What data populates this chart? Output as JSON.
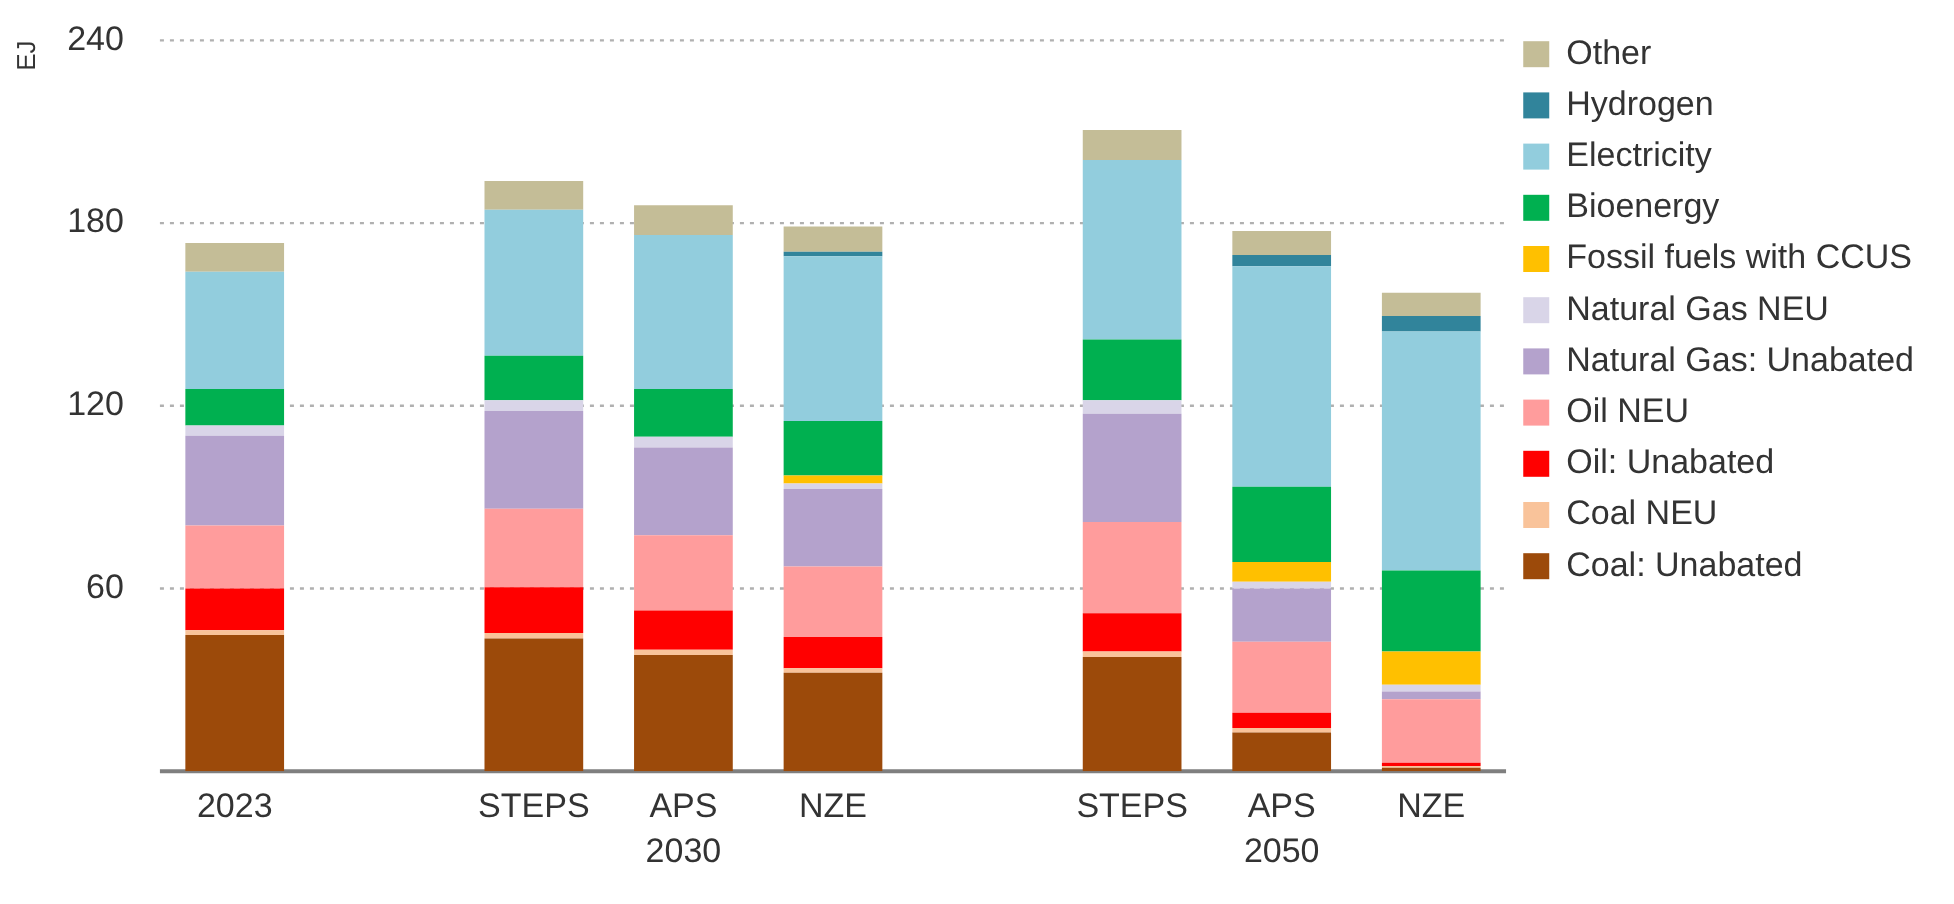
{
  "chart_data": {
    "type": "bar",
    "stacked": true,
    "ylabel": "EJ",
    "categories": [
      "2023",
      null,
      "STEPS",
      "APS",
      "NZE",
      null,
      "STEPS",
      "APS",
      "NZE"
    ],
    "ylim": [
      0,
      240
    ],
    "yticks": [
      {
        "value": 0,
        "label": null
      },
      60,
      120,
      180,
      240
    ],
    "grid": "y",
    "legend": "right",
    "annotations": [
      "2030",
      "2050"
    ],
    "series": [
      {
        "name": "Coal: Unabated",
        "color": "#9c4a0a",
        "values": [
          44.7,
          null,
          43.6,
          38.2,
          32.3,
          null,
          37.5,
          12.7,
          1.1
        ]
      },
      {
        "name": "Coal NEU",
        "color": "#f9c39a",
        "values": [
          1.6,
          null,
          1.8,
          1.7,
          1.5,
          null,
          1.8,
          1.5,
          0.6
        ]
      },
      {
        "name": "Oil: Unabated",
        "color": "#ff0000",
        "values": [
          13.7,
          null,
          15,
          12.9,
          10.3,
          null,
          12.6,
          5,
          1.1
        ]
      },
      {
        "name": "Oil NEU",
        "color": "#ff9c9c",
        "values": [
          20.7,
          null,
          25.8,
          24.7,
          23.1,
          null,
          29.9,
          23.3,
          20.8
        ]
      },
      {
        "name": "Natural Gas: Unabated",
        "color": "#b4a2cc",
        "values": [
          29.5,
          null,
          32.1,
          28.8,
          25.5,
          null,
          35.6,
          17.5,
          2.6
        ]
      },
      {
        "name": "Natural Gas NEU",
        "color": "#d9d5e8",
        "values": [
          3.3,
          null,
          3.5,
          3.5,
          1.8,
          null,
          4.4,
          2.2,
          2.2
        ]
      },
      {
        "name": "Fossil fuels with CCUS",
        "color": "#ffc000",
        "values": [
          0,
          null,
          0,
          0,
          2.6,
          null,
          0,
          6.5,
          10.9
        ]
      },
      {
        "name": "Bioenergy",
        "color": "#00b050",
        "values": [
          12,
          null,
          14.6,
          15.7,
          17.9,
          null,
          20,
          24.7,
          26.6
        ]
      },
      {
        "name": "Electricity",
        "color": "#92cddd",
        "values": [
          38.5,
          null,
          48,
          50.6,
          54.1,
          null,
          58.9,
          72.4,
          78.5
        ]
      },
      {
        "name": "Hydrogen",
        "color": "#31849b",
        "values": [
          0,
          null,
          0,
          0,
          1.5,
          null,
          0,
          3.7,
          5.1
        ]
      },
      {
        "name": "Other",
        "color": "#c4bd97",
        "values": [
          9.5,
          null,
          9.4,
          9.8,
          8.3,
          null,
          9.9,
          7.9,
          7.6
        ]
      }
    ]
  }
}
